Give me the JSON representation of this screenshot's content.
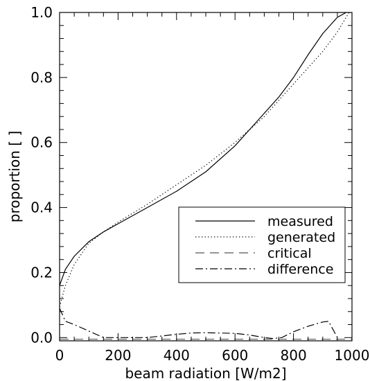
{
  "chart_data": {
    "type": "line",
    "title": "",
    "xlabel": "beam radiation [W/m2]",
    "ylabel": "proportion [ ]",
    "xlim": [
      0,
      1000
    ],
    "ylim": [
      -0.01,
      1.0
    ],
    "xticks": [
      0,
      200,
      400,
      600,
      800,
      1000
    ],
    "xtick_labels": [
      "0",
      "200",
      "400",
      "600",
      "800",
      "1000"
    ],
    "yticks": [
      0.0,
      0.2,
      0.4,
      0.6,
      0.8,
      1.0
    ],
    "ytick_labels": [
      "0.0",
      "0.2",
      "0.4",
      "0.6",
      "0.8",
      "1.0"
    ],
    "grid": false,
    "legend_position": "lower-right",
    "series": [
      {
        "name": "measured",
        "style": "solid",
        "x": [
          0,
          20,
          50,
          100,
          150,
          200,
          300,
          400,
          500,
          600,
          650,
          700,
          750,
          800,
          850,
          900,
          950,
          980
        ],
        "y": [
          0.16,
          0.21,
          0.25,
          0.295,
          0.325,
          0.35,
          0.4,
          0.45,
          0.51,
          0.59,
          0.64,
          0.69,
          0.74,
          0.8,
          0.87,
          0.935,
          0.985,
          1.0
        ]
      },
      {
        "name": "generated",
        "style": "dotted",
        "x": [
          0,
          20,
          50,
          100,
          150,
          200,
          300,
          400,
          500,
          600,
          700,
          800,
          900,
          950,
          990
        ],
        "y": [
          0.095,
          0.16,
          0.225,
          0.29,
          0.325,
          0.355,
          0.41,
          0.47,
          0.53,
          0.6,
          0.68,
          0.78,
          0.88,
          0.94,
          1.0
        ]
      },
      {
        "name": "critical",
        "style": "dashed",
        "x": [
          0,
          1000
        ],
        "y": [
          -0.005,
          -0.005
        ]
      },
      {
        "name": "difference",
        "style": "dash-dot",
        "x": [
          0,
          20,
          50,
          100,
          150,
          200,
          300,
          400,
          450,
          500,
          600,
          650,
          700,
          730,
          760,
          800,
          850,
          900,
          920,
          950
        ],
        "y": [
          0.09,
          0.05,
          0.04,
          0.02,
          0.0,
          0.0,
          0.0,
          0.01,
          0.014,
          0.015,
          0.013,
          0.008,
          0.0,
          -0.003,
          0.0,
          0.018,
          0.035,
          0.048,
          0.05,
          0.0
        ]
      }
    ]
  }
}
